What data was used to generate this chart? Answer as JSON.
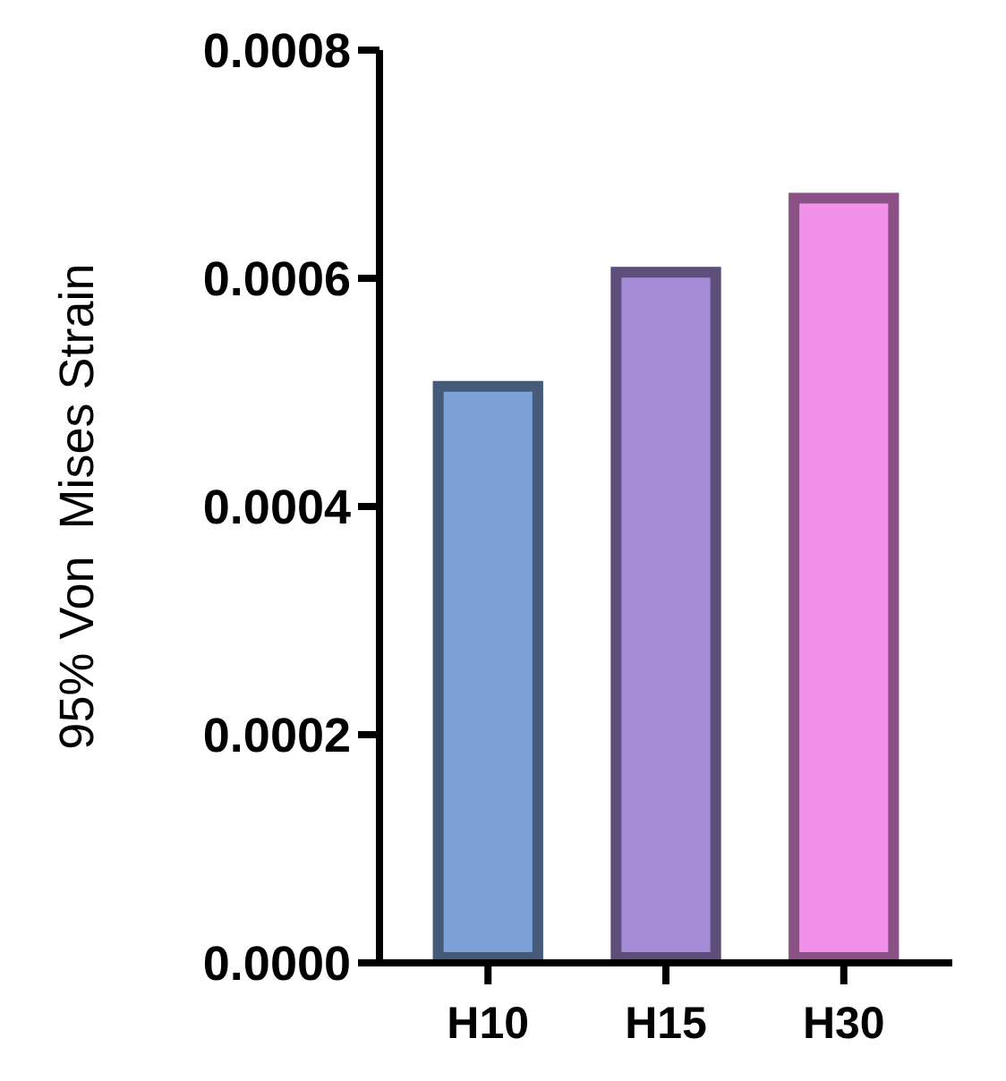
{
  "chart_data": {
    "type": "bar",
    "ylabel": "95% Von  Mises Strain",
    "categories": [
      "H10",
      "H15",
      "H30"
    ],
    "values": [
      0.00051,
      0.00061,
      0.000675
    ],
    "colors": [
      "#7ba1d8",
      "#a68bd8",
      "#f290ea"
    ],
    "ylim": [
      0,
      0.0008
    ],
    "yticks": [
      {
        "value": 0,
        "label": "0.0000"
      },
      {
        "value": 0.0002,
        "label": "0.0002"
      },
      {
        "value": 0.0004,
        "label": "0.0004"
      },
      {
        "value": 0.0006,
        "label": "0.0006"
      },
      {
        "value": 0.0008,
        "label": "0.0008"
      }
    ]
  }
}
